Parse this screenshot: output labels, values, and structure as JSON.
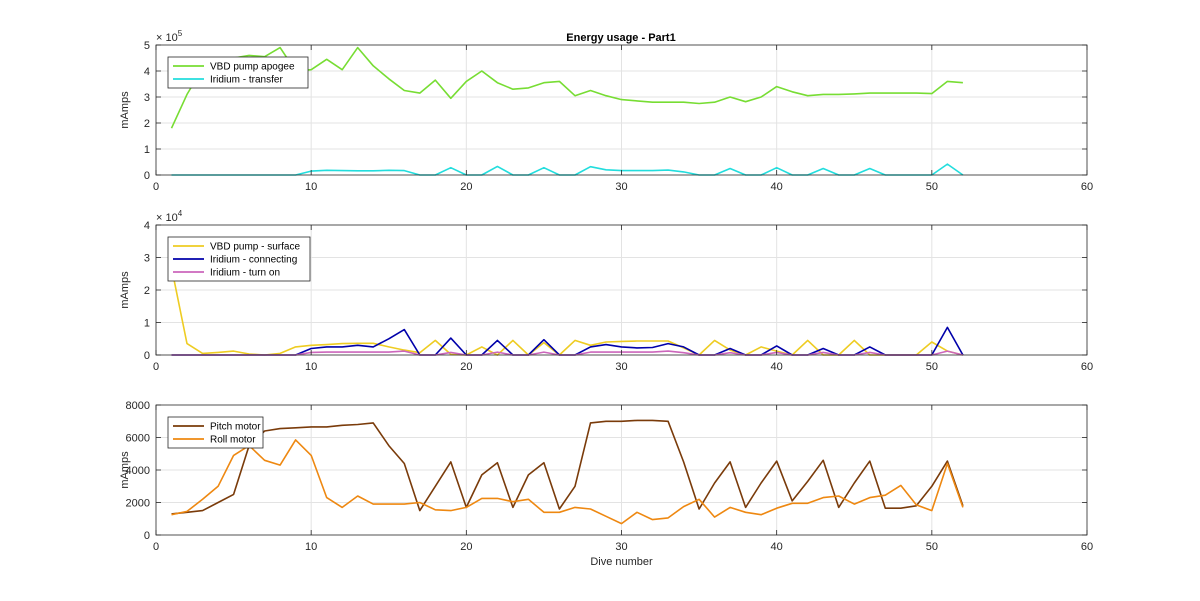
{
  "figure": {
    "title": "Energy usage - Part1"
  },
  "chart_data": [
    {
      "type": "line",
      "title": "Energy usage - Part1",
      "xlabel": "",
      "ylabel": "mAmps",
      "exponent_label": "× 10^5",
      "exponent_base": "× 10",
      "exponent_power": "5",
      "xlim": [
        0,
        60
      ],
      "ylim": [
        0,
        500000
      ],
      "xticks": [
        0,
        10,
        20,
        30,
        40,
        50,
        60
      ],
      "yticks": [
        0,
        100000,
        200000,
        300000,
        400000,
        500000
      ],
      "ytick_labels": [
        "0",
        "1",
        "2",
        "3",
        "4",
        "5"
      ],
      "grid": true,
      "legend": "top-left",
      "series": [
        {
          "name": "VBD pump apogee",
          "color": "#77dd33",
          "x": [
            1,
            2,
            3,
            4,
            5,
            6,
            7,
            8,
            9,
            10,
            11,
            12,
            13,
            14,
            15,
            16,
            17,
            18,
            19,
            20,
            21,
            22,
            23,
            24,
            25,
            26,
            27,
            28,
            29,
            30,
            31,
            32,
            33,
            34,
            35,
            36,
            37,
            38,
            39,
            40,
            41,
            42,
            43,
            44,
            45,
            46,
            47,
            48,
            49,
            50,
            51,
            52
          ],
          "y": [
            180000,
            310000,
            410000,
            450000,
            450000,
            460000,
            455000,
            490000,
            400000,
            405000,
            445000,
            405000,
            490000,
            420000,
            370000,
            325000,
            315000,
            365000,
            295000,
            360000,
            400000,
            355000,
            330000,
            335000,
            355000,
            360000,
            305000,
            325000,
            305000,
            290000,
            285000,
            280000,
            280000,
            280000,
            275000,
            280000,
            300000,
            282000,
            300000,
            340000,
            320000,
            305000,
            310000,
            310000,
            312000,
            315000,
            315000,
            315000,
            315000,
            313000,
            360000,
            355000
          ]
        },
        {
          "name": "Iridium - transfer",
          "color": "#22dddd",
          "x": [
            1,
            2,
            3,
            4,
            5,
            6,
            7,
            8,
            9,
            10,
            11,
            12,
            13,
            14,
            15,
            16,
            17,
            18,
            19,
            20,
            21,
            22,
            23,
            24,
            25,
            26,
            27,
            28,
            29,
            30,
            31,
            32,
            33,
            34,
            35,
            36,
            37,
            38,
            39,
            40,
            41,
            42,
            43,
            44,
            45,
            46,
            47,
            48,
            49,
            50,
            51,
            52
          ],
          "y": [
            0,
            0,
            0,
            0,
            0,
            0,
            0,
            0,
            0,
            15000,
            18000,
            17000,
            16000,
            16000,
            18000,
            17000,
            0,
            0,
            28000,
            0,
            0,
            33000,
            0,
            0,
            28000,
            0,
            0,
            32000,
            20000,
            17000,
            17000,
            17000,
            19000,
            12000,
            0,
            0,
            25000,
            0,
            0,
            28000,
            0,
            0,
            25000,
            0,
            0,
            25000,
            0,
            0,
            0,
            0,
            42000,
            0
          ]
        }
      ]
    },
    {
      "type": "line",
      "title": "",
      "xlabel": "",
      "ylabel": "mAmps",
      "exponent_label": "× 10^4",
      "exponent_base": "× 10",
      "exponent_power": "4",
      "xlim": [
        0,
        60
      ],
      "ylim": [
        0,
        40000
      ],
      "xticks": [
        0,
        10,
        20,
        30,
        40,
        50,
        60
      ],
      "yticks": [
        0,
        10000,
        20000,
        30000,
        40000
      ],
      "ytick_labels": [
        "0",
        "1",
        "2",
        "3",
        "4"
      ],
      "grid": true,
      "legend": "top-left",
      "series": [
        {
          "name": "VBD pump - surface",
          "color": "#eecc22",
          "x": [
            1,
            2,
            3,
            4,
            5,
            6,
            7,
            8,
            9,
            10,
            11,
            12,
            13,
            14,
            15,
            16,
            17,
            18,
            19,
            20,
            21,
            22,
            23,
            24,
            25,
            26,
            27,
            28,
            29,
            30,
            31,
            32,
            33,
            34,
            35,
            36,
            37,
            38,
            39,
            40,
            41,
            42,
            43,
            44,
            45,
            46,
            47,
            48,
            49,
            50,
            51,
            52
          ],
          "y": [
            27000,
            3500,
            500,
            800,
            1200,
            300,
            0,
            500,
            2500,
            3000,
            3200,
            3500,
            3600,
            3600,
            2500,
            1500,
            700,
            4500,
            200,
            0,
            2500,
            0,
            4500,
            0,
            3800,
            0,
            4500,
            3000,
            4000,
            4200,
            4300,
            4300,
            4300,
            2200,
            0,
            4500,
            1500,
            0,
            2500,
            1200,
            0,
            4500,
            0,
            0,
            4500,
            0,
            0,
            0,
            0,
            4000,
            1200,
            0
          ]
        },
        {
          "name": "Iridium - connecting",
          "color": "#0000aa",
          "x": [
            1,
            2,
            3,
            4,
            5,
            6,
            7,
            8,
            9,
            10,
            11,
            12,
            13,
            14,
            15,
            16,
            17,
            18,
            19,
            20,
            21,
            22,
            23,
            24,
            25,
            26,
            27,
            28,
            29,
            30,
            31,
            32,
            33,
            34,
            35,
            36,
            37,
            38,
            39,
            40,
            41,
            42,
            43,
            44,
            45,
            46,
            47,
            48,
            49,
            50,
            51,
            52
          ],
          "y": [
            0,
            0,
            0,
            0,
            0,
            0,
            0,
            0,
            0,
            2000,
            2500,
            2500,
            3000,
            2500,
            5000,
            7800,
            0,
            0,
            5200,
            0,
            0,
            4500,
            0,
            0,
            4700,
            0,
            0,
            2500,
            3200,
            2500,
            2200,
            2300,
            3500,
            2500,
            0,
            0,
            2000,
            0,
            0,
            2800,
            0,
            0,
            2000,
            0,
            0,
            2500,
            0,
            0,
            0,
            0,
            8500,
            0
          ]
        },
        {
          "name": "Iridium - turn on",
          "color": "#cc66bb",
          "x": [
            1,
            2,
            3,
            4,
            5,
            6,
            7,
            8,
            9,
            10,
            11,
            12,
            13,
            14,
            15,
            16,
            17,
            18,
            19,
            20,
            21,
            22,
            23,
            24,
            25,
            26,
            27,
            28,
            29,
            30,
            31,
            32,
            33,
            34,
            35,
            36,
            37,
            38,
            39,
            40,
            41,
            42,
            43,
            44,
            45,
            46,
            47,
            48,
            49,
            50,
            51,
            52
          ],
          "y": [
            0,
            0,
            0,
            0,
            0,
            0,
            0,
            0,
            0,
            800,
            900,
            900,
            900,
            900,
            900,
            1200,
            0,
            0,
            800,
            0,
            0,
            900,
            0,
            0,
            900,
            0,
            0,
            900,
            900,
            900,
            900,
            900,
            1200,
            700,
            0,
            0,
            700,
            0,
            0,
            800,
            0,
            0,
            800,
            0,
            0,
            800,
            0,
            0,
            0,
            0,
            1200,
            0
          ]
        }
      ]
    },
    {
      "type": "line",
      "title": "",
      "xlabel": "Dive number",
      "ylabel": "mAmps",
      "xlim": [
        0,
        60
      ],
      "ylim": [
        0,
        8000
      ],
      "xticks": [
        0,
        10,
        20,
        30,
        40,
        50,
        60
      ],
      "yticks": [
        0,
        2000,
        4000,
        6000,
        8000
      ],
      "ytick_labels": [
        "0",
        "2000",
        "4000",
        "6000",
        "8000"
      ],
      "grid": true,
      "legend": "top-left",
      "series": [
        {
          "name": "Pitch motor",
          "color": "#7a3b0a",
          "x": [
            1,
            2,
            3,
            4,
            5,
            6,
            7,
            8,
            9,
            10,
            11,
            12,
            13,
            14,
            15,
            16,
            17,
            18,
            19,
            20,
            21,
            22,
            23,
            24,
            25,
            26,
            27,
            28,
            29,
            30,
            31,
            32,
            33,
            34,
            35,
            36,
            37,
            38,
            39,
            40,
            41,
            42,
            43,
            44,
            45,
            46,
            47,
            48,
            49,
            50,
            51,
            52
          ],
          "y": [
            1300,
            1400,
            1500,
            2000,
            2500,
            5500,
            6400,
            6550,
            6600,
            6650,
            6650,
            6750,
            6800,
            6900,
            5500,
            4400,
            1500,
            3000,
            4500,
            1700,
            3700,
            4450,
            1700,
            3700,
            4450,
            1600,
            3000,
            6900,
            7000,
            7000,
            7050,
            7050,
            7000,
            4500,
            1600,
            3200,
            4500,
            1700,
            3200,
            4550,
            2100,
            3300,
            4600,
            1700,
            3200,
            4550,
            1650,
            1650,
            1800,
            3000,
            4550,
            1800
          ]
        },
        {
          "name": "Roll motor",
          "color": "#ee8811",
          "x": [
            1,
            2,
            3,
            4,
            5,
            6,
            7,
            8,
            9,
            10,
            11,
            12,
            13,
            14,
            15,
            16,
            17,
            18,
            19,
            20,
            21,
            22,
            23,
            24,
            25,
            26,
            27,
            28,
            29,
            30,
            31,
            32,
            33,
            34,
            35,
            36,
            37,
            38,
            39,
            40,
            41,
            42,
            43,
            44,
            45,
            46,
            47,
            48,
            49,
            50,
            51,
            52
          ],
          "y": [
            1250,
            1450,
            2200,
            3000,
            4900,
            5500,
            4600,
            4300,
            5850,
            4900,
            2300,
            1700,
            2400,
            1900,
            1900,
            1900,
            2000,
            1550,
            1500,
            1700,
            2250,
            2250,
            2050,
            2200,
            1400,
            1400,
            1700,
            1600,
            1150,
            700,
            1400,
            950,
            1050,
            1750,
            2200,
            1100,
            1700,
            1400,
            1250,
            1650,
            1950,
            1950,
            2300,
            2400,
            1900,
            2300,
            2450,
            3050,
            1850,
            1500,
            4400,
            1700
          ]
        }
      ]
    }
  ]
}
